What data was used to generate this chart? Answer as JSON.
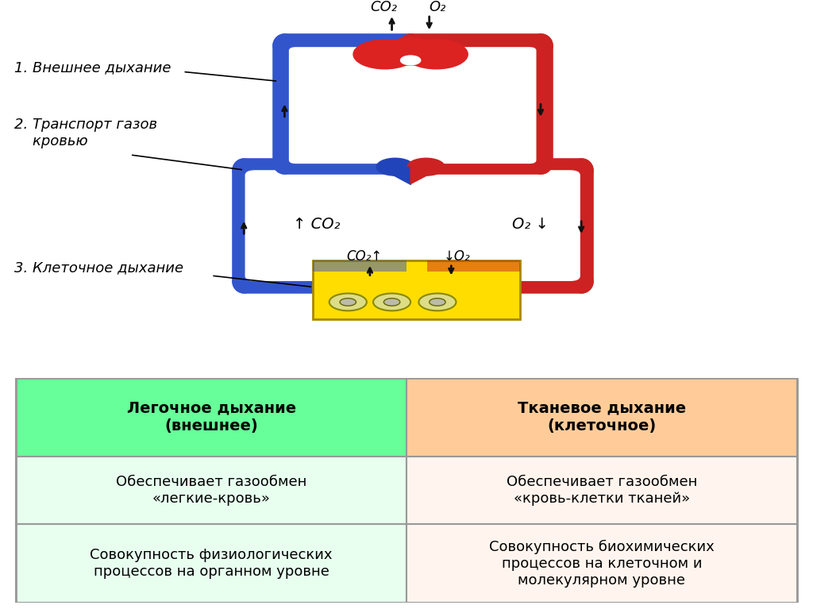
{
  "bg_color": "#ffffff",
  "diagram": {
    "labels": {
      "label1": "1. Внешнее дыхание",
      "label2": "2. Транспорт газов\n    кровью",
      "label3": "3. Клеточное дыхание"
    }
  },
  "table": {
    "col1_header": "Легочное дыхание\n(внешнее)",
    "col2_header": "Тканевое дыхание\n(клеточное)",
    "col1_header_bg": "#66ff99",
    "col2_header_bg": "#ffcc99",
    "row1_col1": "Обеспечивает газообмен\n«легкие-кровь»",
    "row1_col2": "Обеспечивает газообмен\n«кровь-клетки тканей»",
    "row2_col1": "Совокупность физиологических\nпроцессов на органном уровне",
    "row2_col2": "Совокупность биохимических\nпроцессов на клеточном и\nмолекулярном уровне",
    "row1_bg_left": "#e8fff0",
    "row1_bg_right": "#fff5ee",
    "row2_bg_left": "#e8fff0",
    "row2_bg_right": "#fff5ee",
    "border_color": "#999999",
    "text_color": "#000000",
    "header_text_color": "#000000"
  },
  "colors": {
    "blue": "#3355cc",
    "red": "#cc2222",
    "lung_red": "#dd2222",
    "heart_blue": "#2244bb",
    "heart_red": "#cc2222",
    "yellow": "#ffdd00",
    "cell_outline": "#888800",
    "arrow_color": "#111111",
    "border_color": "#999999",
    "white": "#ffffff"
  }
}
